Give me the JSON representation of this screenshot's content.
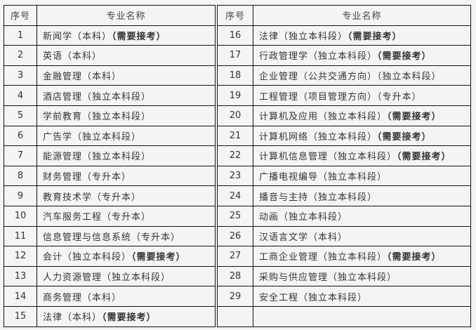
{
  "headers": {
    "index": "序号",
    "name": "专业名称"
  },
  "left_rows": [
    {
      "index": "1",
      "name": "新闻学（本科）",
      "note": "（需要接考）"
    },
    {
      "index": "2",
      "name": "英语（本科）",
      "note": ""
    },
    {
      "index": "3",
      "name": "金融管理（本科）",
      "note": ""
    },
    {
      "index": "4",
      "name": "酒店管理（独立本科段）",
      "note": ""
    },
    {
      "index": "5",
      "name": "学前教育（独立本科段）",
      "note": ""
    },
    {
      "index": "6",
      "name": "广告学（独立本科段）",
      "note": ""
    },
    {
      "index": "7",
      "name": "能源管理（独立本科段）",
      "note": ""
    },
    {
      "index": "8",
      "name": "财务管理（专升本）",
      "note": ""
    },
    {
      "index": "9",
      "name": "教育技术学（专升本）",
      "note": ""
    },
    {
      "index": "10",
      "name": "汽车服务工程（专升本）",
      "note": ""
    },
    {
      "index": "11",
      "name": "信息管理与信息系统（专升本）",
      "note": ""
    },
    {
      "index": "12",
      "name": "会计（独立本科段）",
      "note": "（需要接考）"
    },
    {
      "index": "13",
      "name": "人力资源管理（独立本科段）",
      "note": ""
    },
    {
      "index": "14",
      "name": "商务管理（本科）",
      "note": ""
    },
    {
      "index": "15",
      "name": "法律（本科）",
      "note": "（需要接考）"
    }
  ],
  "right_rows": [
    {
      "index": "16",
      "name": "法律（独立本科段）",
      "note": "（需要接考）"
    },
    {
      "index": "17",
      "name": "行政管理学（独立本科段）",
      "note": "（需要接考）"
    },
    {
      "index": "18",
      "name": "企业管理（公共交通方向）（独立本科段）",
      "note": ""
    },
    {
      "index": "19",
      "name": "工程管理（项目管理方向）（专升本）",
      "note": ""
    },
    {
      "index": "20",
      "name": "计算机及应用（独立本科段）",
      "note": "（需要接考）"
    },
    {
      "index": "21",
      "name": "计算机网络（独立本科段）",
      "note": "（需要接考）"
    },
    {
      "index": "22",
      "name": "计算机信息管理（独立本科段）",
      "note": "（需要接考）"
    },
    {
      "index": "23",
      "name": "广播电视编导（独立本科段）",
      "note": ""
    },
    {
      "index": "24",
      "name": "播音与主持（独立本科段）",
      "note": ""
    },
    {
      "index": "25",
      "name": "动画（独立本科段）",
      "note": ""
    },
    {
      "index": "26",
      "name": "汉语言文学（本科）",
      "note": ""
    },
    {
      "index": "27",
      "name": "工商企业管理（独立本科段）",
      "note": "（需要接考）"
    },
    {
      "index": "28",
      "name": "采购与供应管理（独立本科段）",
      "note": ""
    },
    {
      "index": "29",
      "name": "安全工程（独立本科段）",
      "note": ""
    },
    {
      "index": "",
      "name": "",
      "note": ""
    }
  ]
}
